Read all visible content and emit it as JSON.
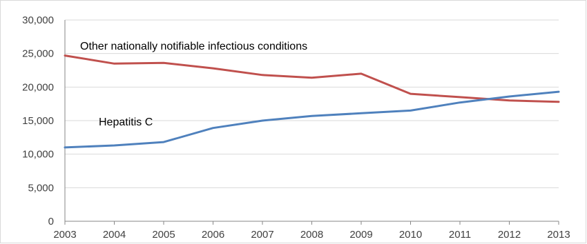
{
  "chart_data": {
    "type": "line",
    "x": [
      "2003",
      "2004",
      "2005",
      "2006",
      "2007",
      "2008",
      "2009",
      "2010",
      "2011",
      "2012",
      "2013"
    ],
    "ylim": [
      0,
      30000
    ],
    "yticks": [
      "0",
      "5,000",
      "10,000",
      "15,000",
      "20,000",
      "25,000",
      "30,000"
    ],
    "ytick_values": [
      0,
      5000,
      10000,
      15000,
      20000,
      25000,
      30000
    ],
    "grid": true,
    "series": [
      {
        "name": "Other nationally notifiable infectious conditions",
        "color": "#c0504d",
        "values": [
          24700,
          23500,
          23600,
          22800,
          21800,
          21400,
          22000,
          19000,
          18500,
          18000,
          17800
        ]
      },
      {
        "name": "Hepatitis C",
        "color": "#4f81bd",
        "values": [
          11000,
          11300,
          11800,
          13900,
          15000,
          15700,
          16100,
          16500,
          17700,
          18600,
          19300
        ]
      }
    ]
  }
}
